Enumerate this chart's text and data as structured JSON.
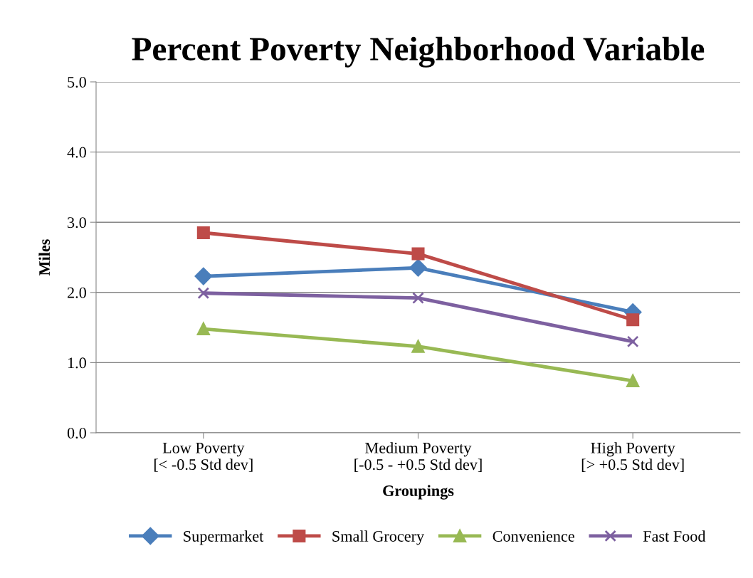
{
  "chart_data": {
    "type": "line",
    "title": "Percent Poverty Neighborhood Variable",
    "xlabel": "Groupings",
    "ylabel": "Miles",
    "categories": [
      "Low Poverty\n[< -0.5 Std dev]",
      "Medium Poverty\n[-0.5 - +0.5 Std dev]",
      "High Poverty\n[> +0.5 Std dev]"
    ],
    "series": [
      {
        "name": "Supermarket",
        "color": "#4a7ebb",
        "marker": "diamond",
        "values": [
          2.23,
          2.35,
          1.72
        ]
      },
      {
        "name": "Small Grocery",
        "color": "#be4b48",
        "marker": "square",
        "values": [
          2.85,
          2.55,
          1.61
        ]
      },
      {
        "name": "Convenience",
        "color": "#98b954",
        "marker": "triangle",
        "values": [
          1.48,
          1.23,
          0.74
        ]
      },
      {
        "name": "Fast Food",
        "color": "#7d60a0",
        "marker": "cross",
        "values": [
          1.99,
          1.92,
          1.3
        ]
      }
    ],
    "ylim": [
      0,
      5
    ],
    "yticks": [
      {
        "value": 0,
        "label": "0.0"
      },
      {
        "value": 1,
        "label": "1.0"
      },
      {
        "value": 2,
        "label": "2.0"
      },
      {
        "value": 3,
        "label": "3.0"
      },
      {
        "value": 4,
        "label": "4.0"
      },
      {
        "value": 5,
        "label": "5.0"
      }
    ],
    "grid": "y",
    "legend": "bottom",
    "line_style": "solid"
  }
}
